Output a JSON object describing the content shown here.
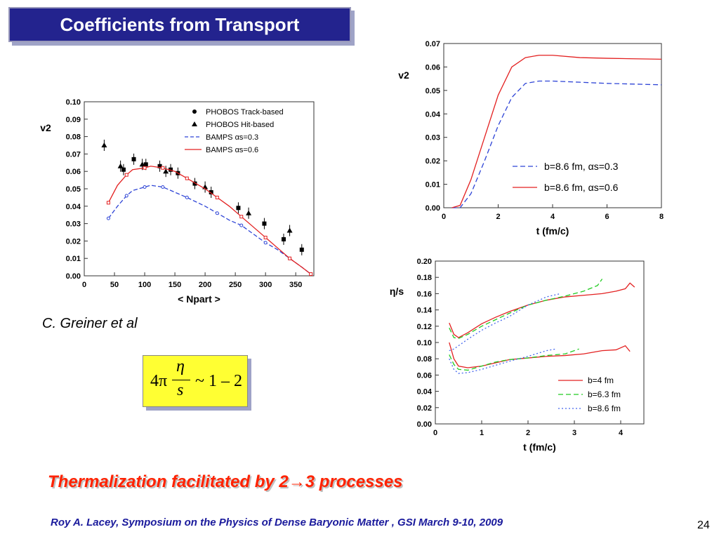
{
  "slide": {
    "title": "Coefficients from Transport",
    "credit": "C. Greiner et al",
    "formula": {
      "prefix": "4π",
      "numerator": "η",
      "denominator": "s",
      "suffix": "~ 1 – 2"
    },
    "thermalization_text": "Thermalization facilitated by 2→3 processes",
    "footer": "Roy A. Lacey,  Symposium on the  Physics of Dense Baryonic Matter ,  GSI  March 9-10,  2009",
    "page_number": "24"
  },
  "chart_data": [
    {
      "type": "scatter",
      "ylabel": "v2",
      "xlabel": "< Npart >",
      "xlim": [
        0,
        380
      ],
      "ylim": [
        0,
        0.1
      ],
      "xticks": [
        "0",
        "50",
        "100",
        "150",
        "200",
        "250",
        "300",
        "350"
      ],
      "yticks": [
        "0.00",
        "0.01",
        "0.02",
        "0.03",
        "0.04",
        "0.05",
        "0.06",
        "0.07",
        "0.08",
        "0.09",
        "0.10"
      ],
      "legend": [
        "PHOBOS Track-based",
        "PHOBOS Hit-based",
        "BAMPS  αs=0.3",
        "BAMPS  αs=0.6"
      ],
      "series": [
        {
          "name": "PHOBOS Track-based",
          "color": "#000000",
          "x": [
            65,
            82,
            102,
            125,
            143,
            155,
            183,
            210,
            255,
            298,
            330,
            360
          ],
          "y": [
            0.061,
            0.067,
            0.064,
            0.063,
            0.061,
            0.059,
            0.053,
            0.048,
            0.039,
            0.03,
            0.021,
            0.015
          ]
        },
        {
          "name": "PHOBOS Hit-based",
          "color": "#000000",
          "x": [
            33,
            60,
            96,
            135,
            200,
            272,
            340
          ],
          "y": [
            0.075,
            0.063,
            0.064,
            0.06,
            0.051,
            0.036,
            0.026
          ]
        },
        {
          "name": "BAMPS  αs=0.3",
          "color": "#2e44d6",
          "x": [
            40,
            55,
            70,
            80,
            100,
            110,
            130,
            150,
            170,
            200,
            220,
            240,
            260,
            280,
            300,
            320,
            340,
            360,
            375
          ],
          "y": [
            0.033,
            0.04,
            0.046,
            0.049,
            0.051,
            0.052,
            0.051,
            0.048,
            0.045,
            0.04,
            0.036,
            0.032,
            0.029,
            0.024,
            0.019,
            0.015,
            0.01,
            0.005,
            0.001
          ]
        },
        {
          "name": "BAMPS  αs=0.6",
          "color": "#e32020",
          "x": [
            40,
            55,
            70,
            80,
            100,
            110,
            130,
            150,
            170,
            200,
            220,
            240,
            260,
            280,
            300,
            320,
            340,
            360,
            375
          ],
          "y": [
            0.042,
            0.052,
            0.058,
            0.061,
            0.062,
            0.063,
            0.062,
            0.06,
            0.056,
            0.05,
            0.045,
            0.04,
            0.034,
            0.028,
            0.022,
            0.016,
            0.01,
            0.005,
            0.001
          ]
        }
      ]
    },
    {
      "type": "line",
      "ylabel": "v2",
      "xlabel": "t  (fm/c)",
      "xlim": [
        0,
        8
      ],
      "ylim": [
        0,
        0.07
      ],
      "xticks": [
        "0",
        "2",
        "4",
        "6",
        "8"
      ],
      "yticks": [
        "0.00",
        "0.01",
        "0.02",
        "0.03",
        "0.04",
        "0.05",
        "0.06",
        "0.07"
      ],
      "legend": [
        "b=8.6 fm,  αs=0.3",
        "b=8.6 fm,  αs=0.6"
      ],
      "series": [
        {
          "name": "b=8.6 fm,  αs=0.3",
          "color": "#2e44d6",
          "style": "dashed",
          "x": [
            0.3,
            0.6,
            1.0,
            1.5,
            2.0,
            2.5,
            3.0,
            3.5,
            4.0,
            5.0,
            6.0,
            7.0,
            8.0
          ],
          "y": [
            0.0,
            0.0,
            0.006,
            0.02,
            0.035,
            0.047,
            0.053,
            0.054,
            0.054,
            0.0535,
            0.053,
            0.0527,
            0.0524
          ]
        },
        {
          "name": "b=8.6 fm,  αs=0.6",
          "color": "#e32020",
          "style": "solid",
          "x": [
            0.3,
            0.6,
            1.0,
            1.5,
            2.0,
            2.5,
            3.0,
            3.5,
            4.0,
            5.0,
            6.0,
            7.0,
            8.0
          ],
          "y": [
            0.0,
            0.001,
            0.012,
            0.03,
            0.048,
            0.06,
            0.064,
            0.065,
            0.065,
            0.064,
            0.0637,
            0.0635,
            0.0633
          ]
        }
      ]
    },
    {
      "type": "line",
      "ylabel": "η/s",
      "xlabel": "t  (fm/c)",
      "xlim": [
        0,
        4.5
      ],
      "ylim": [
        0,
        0.2
      ],
      "xticks": [
        "0",
        "1",
        "2",
        "3",
        "4"
      ],
      "yticks": [
        "0.00",
        "0.02",
        "0.04",
        "0.06",
        "0.08",
        "0.10",
        "0.12",
        "0.14",
        "0.16",
        "0.18",
        "0.20"
      ],
      "legend": [
        "b=4 fm",
        "b=6.3 fm",
        "b=8.6 fm"
      ],
      "series": [
        {
          "name": "b=4 fm",
          "color": "#e32020",
          "style": "solid",
          "x": [
            0.3,
            0.4,
            0.5,
            0.7,
            1.0,
            1.3,
            1.6,
            2.0,
            2.4,
            2.8,
            3.2,
            3.6,
            3.9,
            4.1,
            4.2,
            4.3
          ],
          "y": [
            0.124,
            0.11,
            0.106,
            0.112,
            0.123,
            0.131,
            0.138,
            0.146,
            0.152,
            0.156,
            0.158,
            0.16,
            0.163,
            0.166,
            0.173,
            0.168
          ]
        },
        {
          "name": "b=4 fm",
          "color": "#e32020",
          "style": "solid",
          "x": [
            0.3,
            0.4,
            0.5,
            0.7,
            1.0,
            1.3,
            1.6,
            2.0,
            2.4,
            2.8,
            3.2,
            3.6,
            3.9,
            4.1,
            4.2
          ],
          "y": [
            0.1,
            0.08,
            0.071,
            0.069,
            0.071,
            0.075,
            0.079,
            0.081,
            0.083,
            0.084,
            0.086,
            0.09,
            0.091,
            0.096,
            0.089
          ]
        },
        {
          "name": "b=6.3 fm",
          "color": "#22cc22",
          "style": "dashed",
          "x": [
            0.3,
            0.4,
            0.5,
            0.7,
            1.0,
            1.3,
            1.6,
            2.0,
            2.4,
            2.8,
            3.2,
            3.5,
            3.6
          ],
          "y": [
            0.118,
            0.106,
            0.105,
            0.11,
            0.12,
            0.128,
            0.136,
            0.146,
            0.152,
            0.157,
            0.163,
            0.17,
            0.178
          ]
        },
        {
          "name": "b=6.3 fm",
          "color": "#22cc22",
          "style": "dashed",
          "x": [
            0.3,
            0.4,
            0.5,
            0.7,
            1.0,
            1.3,
            1.6,
            2.0,
            2.4,
            2.8,
            3.1
          ],
          "y": [
            0.085,
            0.073,
            0.067,
            0.066,
            0.071,
            0.076,
            0.079,
            0.081,
            0.084,
            0.086,
            0.092
          ]
        },
        {
          "name": "b=8.6 fm",
          "color": "#4466ee",
          "style": "dotted",
          "x": [
            0.3,
            0.4,
            0.5,
            0.7,
            1.0,
            1.3,
            1.6,
            2.0,
            2.4,
            2.7
          ],
          "y": [
            0.09,
            0.092,
            0.096,
            0.104,
            0.115,
            0.124,
            0.132,
            0.146,
            0.156,
            0.16
          ]
        },
        {
          "name": "b=8.6 fm",
          "color": "#4466ee",
          "style": "dotted",
          "x": [
            0.3,
            0.4,
            0.5,
            0.7,
            1.0,
            1.3,
            1.6,
            2.0,
            2.4,
            2.6
          ],
          "y": [
            0.08,
            0.067,
            0.062,
            0.063,
            0.067,
            0.072,
            0.077,
            0.083,
            0.09,
            0.092
          ]
        }
      ]
    }
  ]
}
